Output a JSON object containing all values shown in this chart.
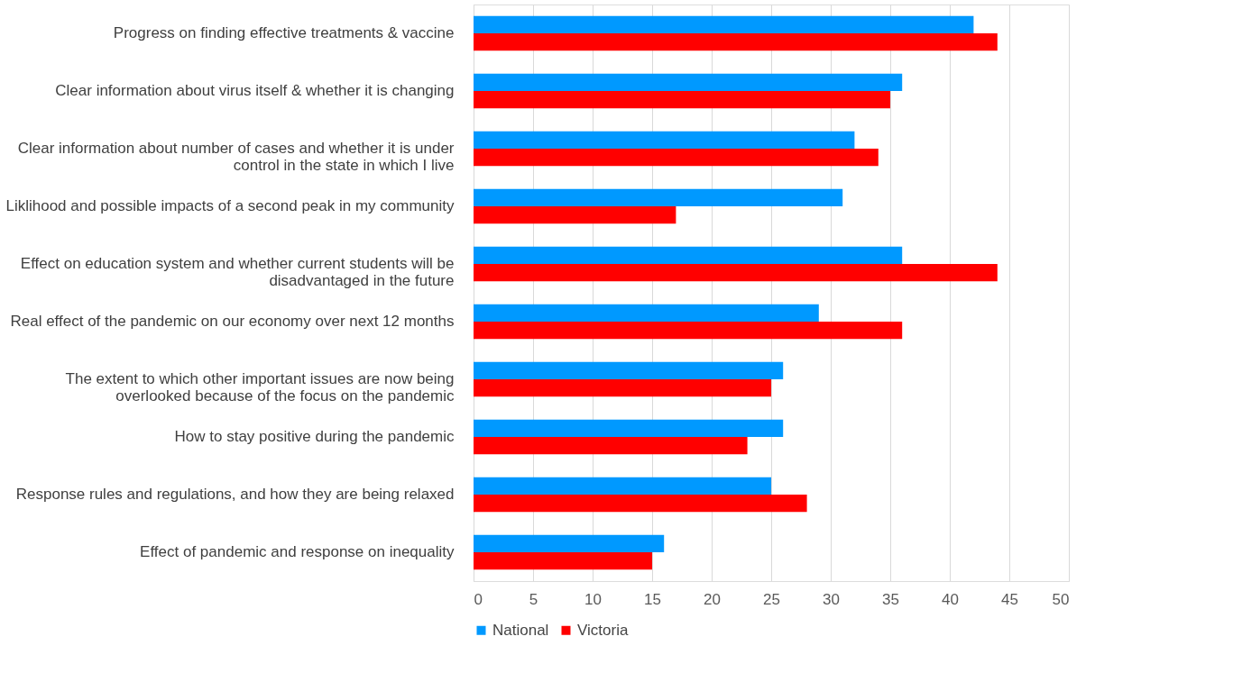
{
  "chart_data": {
    "type": "bar",
    "orientation": "horizontal",
    "categories": [
      "Progress on finding effective treatments & vaccine",
      "Clear information about virus itself & whether it is changing",
      "Clear information about number of cases and whether it is under control in the state in which I live",
      "Liklihood and possible impacts of a second peak in my community",
      "Effect on education system and whether current students will be disadvantaged in the future",
      "Real effect of the pandemic on our economy over next 12 months",
      "The extent to which other important issues are now being overlooked because of the focus on the pandemic",
      "How to stay positive during the pandemic",
      "Response rules and regulations, and how they are being relaxed",
      "Effect of pandemic and response on inequality"
    ],
    "series": [
      {
        "name": "National",
        "color": "#0099ff",
        "values": [
          42,
          36,
          32,
          31,
          36,
          29,
          26,
          26,
          25,
          16
        ]
      },
      {
        "name": "Victoria",
        "color": "#ff0000",
        "values": [
          44,
          35,
          34,
          17,
          44,
          36,
          25,
          23,
          28,
          15
        ]
      }
    ],
    "xlim": [
      0,
      50
    ],
    "xticks": [
      0,
      5,
      10,
      15,
      20,
      25,
      30,
      35,
      40,
      45,
      50
    ],
    "grid": "x",
    "legend": "bottom"
  }
}
